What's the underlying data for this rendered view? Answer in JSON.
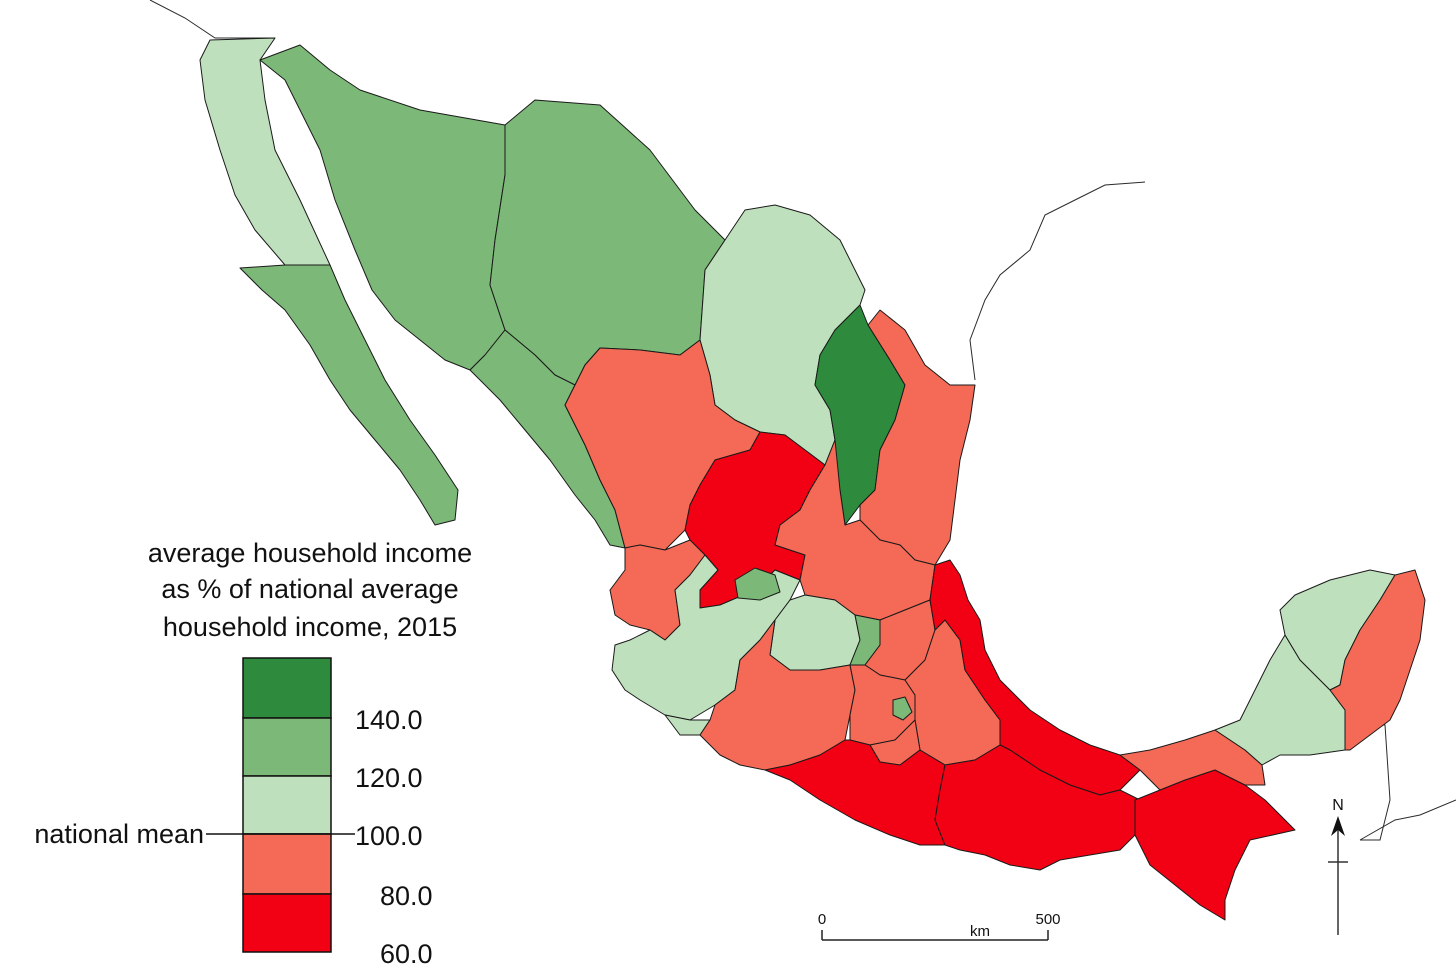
{
  "legend": {
    "title_lines": [
      "average household income",
      "as % of national average",
      "household income, 2015"
    ],
    "classes": [
      {
        "range": "140.0+",
        "color": "#2e8b3e"
      },
      {
        "range": "120.0-140.0",
        "color": "#7cb877"
      },
      {
        "range": "100.0-120.0",
        "color": "#bfe0bc"
      },
      {
        "range": "80.0-100.0",
        "color": "#f46a56"
      },
      {
        "range": "60.0-80.0",
        "color": "#f20013"
      }
    ],
    "ticks": [
      "140.0",
      "120.0",
      "100.0",
      "80.0",
      "60.0"
    ],
    "mean_label": "national mean"
  },
  "scale_bar": {
    "start": "0",
    "end": "500",
    "unit": "km"
  },
  "north_arrow": {
    "label": "N"
  },
  "map": {
    "regions": [
      {
        "id": "baja-california",
        "class": 2
      },
      {
        "id": "baja-california-sur",
        "class": 1
      },
      {
        "id": "sonora",
        "class": 1
      },
      {
        "id": "chihuahua",
        "class": 1
      },
      {
        "id": "sinaloa",
        "class": 1
      },
      {
        "id": "coahuila",
        "class": 2
      },
      {
        "id": "nuevo-leon",
        "class": 0
      },
      {
        "id": "tamaulipas",
        "class": 3
      },
      {
        "id": "durango",
        "class": 3
      },
      {
        "id": "zacatecas",
        "class": 4
      },
      {
        "id": "san-luis-potosi",
        "class": 3
      },
      {
        "id": "nayarit",
        "class": 3
      },
      {
        "id": "jalisco",
        "class": 2
      },
      {
        "id": "aguascalientes",
        "class": 1
      },
      {
        "id": "guanajuato",
        "class": 2
      },
      {
        "id": "queretaro",
        "class": 1
      },
      {
        "id": "hidalgo",
        "class": 3
      },
      {
        "id": "colima",
        "class": 2
      },
      {
        "id": "michoacan",
        "class": 3
      },
      {
        "id": "mexico-state",
        "class": 3
      },
      {
        "id": "mexico-city",
        "class": 1
      },
      {
        "id": "tlaxcala",
        "class": 3
      },
      {
        "id": "puebla",
        "class": 3
      },
      {
        "id": "morelos",
        "class": 3
      },
      {
        "id": "veracruz",
        "class": 4
      },
      {
        "id": "guerrero",
        "class": 4
      },
      {
        "id": "oaxaca",
        "class": 4
      },
      {
        "id": "chiapas",
        "class": 4
      },
      {
        "id": "tabasco",
        "class": 3
      },
      {
        "id": "campeche",
        "class": 2
      },
      {
        "id": "yucatan",
        "class": 2
      },
      {
        "id": "quintana-roo",
        "class": 3
      }
    ]
  }
}
